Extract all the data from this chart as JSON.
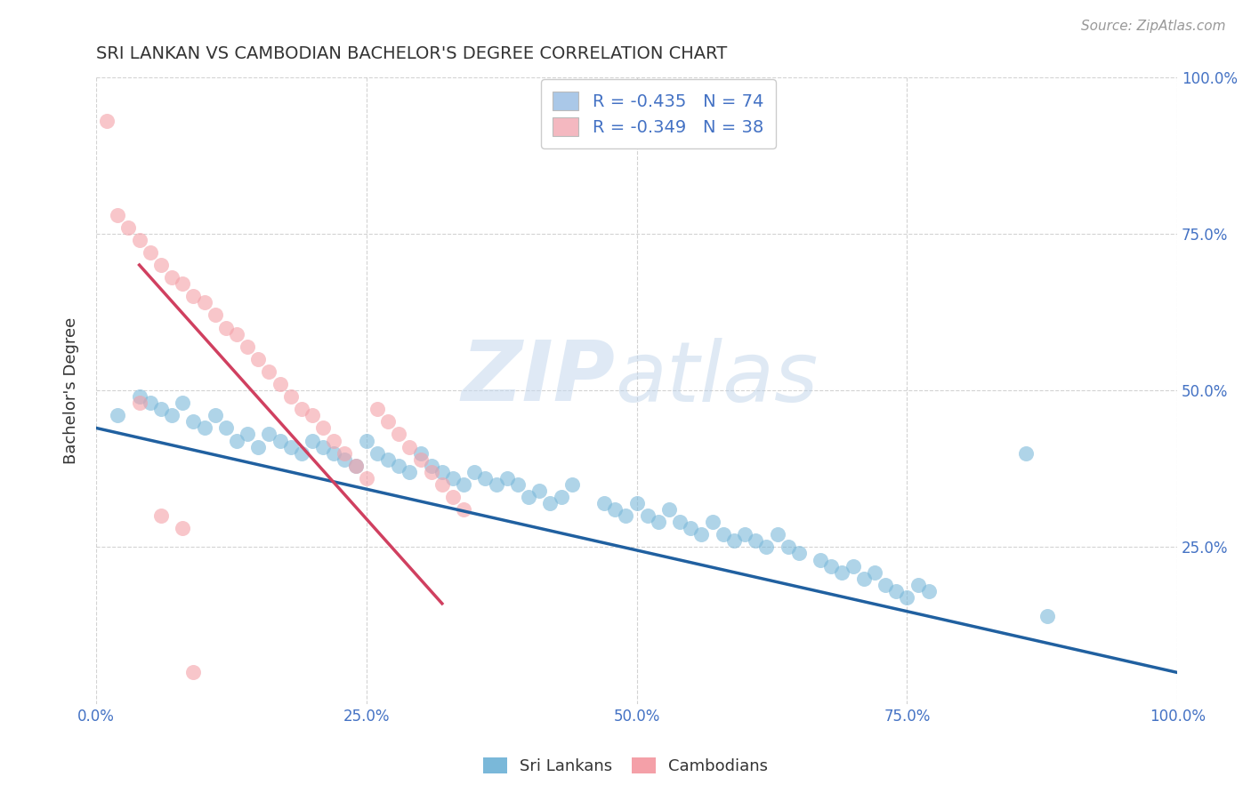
{
  "title": "SRI LANKAN VS CAMBODIAN BACHELOR'S DEGREE CORRELATION CHART",
  "source_text": "Source: ZipAtlas.com",
  "ylabel": "Bachelor's Degree",
  "xlim": [
    0.0,
    1.0
  ],
  "ylim": [
    0.0,
    1.0
  ],
  "xtick_labels": [
    "0.0%",
    "25.0%",
    "50.0%",
    "75.0%",
    "100.0%"
  ],
  "xtick_positions": [
    0.0,
    0.25,
    0.5,
    0.75,
    1.0
  ],
  "ytick_labels": [
    "25.0%",
    "50.0%",
    "75.0%",
    "100.0%"
  ],
  "ytick_positions": [
    0.25,
    0.5,
    0.75,
    1.0
  ],
  "sri_lankan_color": "#7ab8d9",
  "cambodian_color": "#f4a0a8",
  "sri_lankan_line_color": "#2060a0",
  "cambodian_line_color": "#d04060",
  "legend_blue_color": "#aac8e8",
  "legend_pink_color": "#f4b8c0",
  "sri_lankan_R": -0.435,
  "sri_lankan_N": 74,
  "cambodian_R": -0.349,
  "cambodian_N": 38,
  "watermark_zip": "ZIP",
  "watermark_atlas": "atlas",
  "title_fontsize": 14,
  "tick_label_color": "#4472c4",
  "legend_text_color": "#4472c4",
  "sl_trend_x0": 0.0,
  "sl_trend_y0": 0.44,
  "sl_trend_x1": 1.0,
  "sl_trend_y1": 0.05,
  "cam_trend_x0": 0.04,
  "cam_trend_y0": 0.7,
  "cam_trend_x1": 0.32,
  "cam_trend_y1": 0.16,
  "sl_x": [
    0.02,
    0.04,
    0.05,
    0.06,
    0.07,
    0.08,
    0.09,
    0.1,
    0.11,
    0.12,
    0.13,
    0.14,
    0.15,
    0.16,
    0.17,
    0.18,
    0.19,
    0.2,
    0.21,
    0.22,
    0.23,
    0.24,
    0.25,
    0.26,
    0.27,
    0.28,
    0.29,
    0.3,
    0.31,
    0.32,
    0.33,
    0.34,
    0.35,
    0.36,
    0.37,
    0.38,
    0.39,
    0.4,
    0.41,
    0.42,
    0.43,
    0.44,
    0.47,
    0.48,
    0.49,
    0.5,
    0.51,
    0.52,
    0.53,
    0.54,
    0.55,
    0.56,
    0.57,
    0.58,
    0.59,
    0.6,
    0.61,
    0.62,
    0.63,
    0.64,
    0.65,
    0.67,
    0.68,
    0.69,
    0.7,
    0.71,
    0.72,
    0.73,
    0.74,
    0.75,
    0.76,
    0.77,
    0.86,
    0.88
  ],
  "sl_y": [
    0.46,
    0.49,
    0.48,
    0.47,
    0.46,
    0.48,
    0.45,
    0.44,
    0.46,
    0.44,
    0.42,
    0.43,
    0.41,
    0.43,
    0.42,
    0.41,
    0.4,
    0.42,
    0.41,
    0.4,
    0.39,
    0.38,
    0.42,
    0.4,
    0.39,
    0.38,
    0.37,
    0.4,
    0.38,
    0.37,
    0.36,
    0.35,
    0.37,
    0.36,
    0.35,
    0.36,
    0.35,
    0.33,
    0.34,
    0.32,
    0.33,
    0.35,
    0.32,
    0.31,
    0.3,
    0.32,
    0.3,
    0.29,
    0.31,
    0.29,
    0.28,
    0.27,
    0.29,
    0.27,
    0.26,
    0.27,
    0.26,
    0.25,
    0.27,
    0.25,
    0.24,
    0.23,
    0.22,
    0.21,
    0.22,
    0.2,
    0.21,
    0.19,
    0.18,
    0.17,
    0.19,
    0.18,
    0.4,
    0.14
  ],
  "cam_x": [
    0.01,
    0.02,
    0.03,
    0.04,
    0.05,
    0.06,
    0.07,
    0.08,
    0.09,
    0.1,
    0.11,
    0.12,
    0.13,
    0.14,
    0.15,
    0.16,
    0.17,
    0.18,
    0.19,
    0.2,
    0.21,
    0.22,
    0.23,
    0.24,
    0.25,
    0.26,
    0.27,
    0.28,
    0.29,
    0.3,
    0.31,
    0.32,
    0.33,
    0.34,
    0.04,
    0.06,
    0.08,
    0.09
  ],
  "cam_y": [
    0.93,
    0.78,
    0.76,
    0.74,
    0.72,
    0.7,
    0.68,
    0.67,
    0.65,
    0.64,
    0.62,
    0.6,
    0.59,
    0.57,
    0.55,
    0.53,
    0.51,
    0.49,
    0.47,
    0.46,
    0.44,
    0.42,
    0.4,
    0.38,
    0.36,
    0.47,
    0.45,
    0.43,
    0.41,
    0.39,
    0.37,
    0.35,
    0.33,
    0.31,
    0.48,
    0.3,
    0.28,
    0.05
  ]
}
